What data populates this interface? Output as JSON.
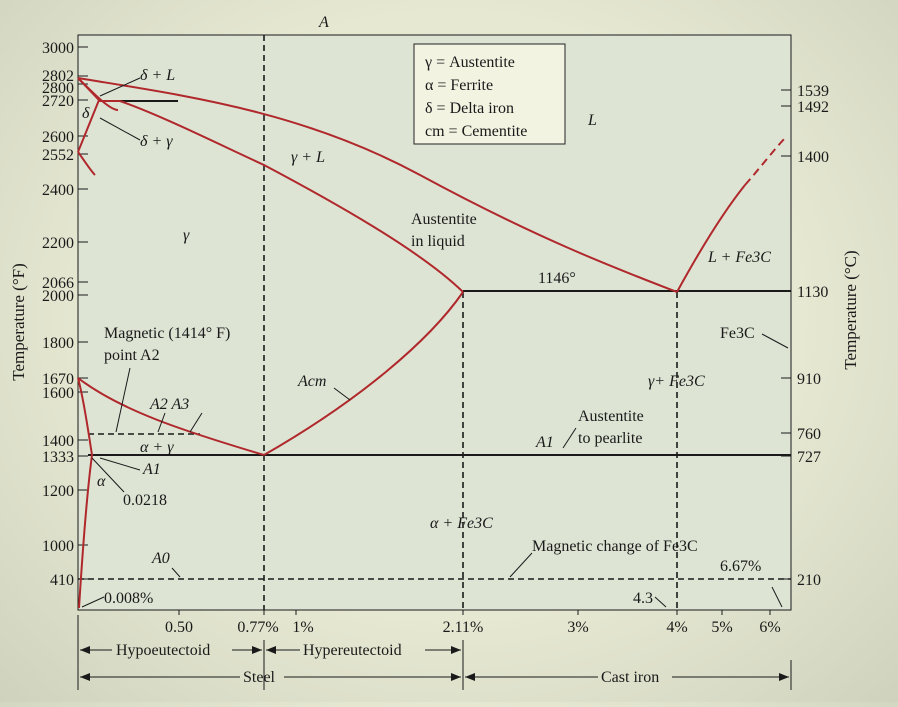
{
  "top_label": "A",
  "left_axis": {
    "title": "Temperature (°F)",
    "ticks": [
      "3000",
      "2802",
      "2800",
      "2720",
      "2600",
      "2552",
      "2400",
      "2200",
      "2066",
      "2000",
      "1800",
      "1670",
      "1600",
      "1400",
      "1333",
      "1200",
      "1000",
      "410"
    ]
  },
  "right_axis": {
    "title": "Temperature (°C)",
    "ticks": [
      "1539",
      "1492",
      "1400",
      "1130",
      "910",
      "760",
      "727",
      "210"
    ]
  },
  "x_ticks": [
    "0.50",
    "0.77%",
    "1%",
    "2.11%",
    "3%",
    "4%",
    "5%",
    "6%"
  ],
  "legend": [
    "γ = Austentite",
    "α = Ferrite",
    "δ = Delta iron",
    "cm = Cementite"
  ],
  "region_labels": {
    "delta_liquid": "δ + L",
    "delta": "δ",
    "delta_gamma": "δ + γ",
    "gamma_liquid": "γ + L",
    "liquid": "L",
    "gamma": "γ",
    "austentite_in_liquid": "Austentite\nin liquid",
    "eutectic_temp": "1146°",
    "liquid_fe3c": "L + Fe3C",
    "fe3c": "Fe3C",
    "magnetic_point": "Magnetic (1414° F)\npoint A2",
    "acm": "Acm",
    "gamma_fe3c": "γ+ Fe3C",
    "a2_a3": "A2  A3",
    "alpha_gamma": "α + γ",
    "austentite_to_pearlite": "Austentite\nto pearlite",
    "a1_right": "A1",
    "a1_left": "A1",
    "alpha": "α",
    "solubility_0218": "0.0218",
    "alpha_fe3c": "α + Fe3C",
    "magnetic_change": "Magnetic change of Fe3C",
    "a0": "A0",
    "pct_667": "6.67%",
    "pct_0008": "0.008%",
    "pct_43": "4.3"
  },
  "bottom_labels": {
    "hypoeutectoid": "Hypoeutectoid",
    "hypereutectoid": "Hypereutectoid",
    "steel": "Steel",
    "cast_iron": "Cast iron"
  },
  "colors": {
    "phase_line": "#b0282c",
    "background": "#e6e8d2",
    "frame": "#dde4d4"
  }
}
